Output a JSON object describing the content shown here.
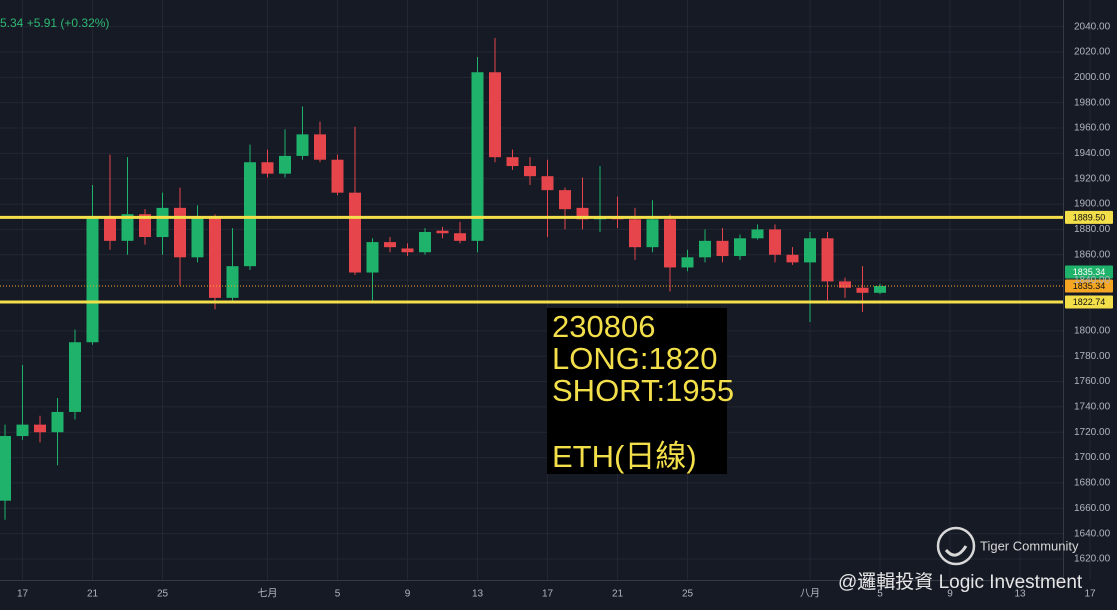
{
  "chart_data": {
    "type": "candlestick",
    "header": "5.34 +5.91 (+0.32%)",
    "categories": [
      null,
      "17",
      null,
      null,
      null,
      "21",
      null,
      null,
      null,
      "25",
      null,
      null,
      null,
      null,
      null,
      "七月",
      null,
      null,
      null,
      "5",
      null,
      null,
      null,
      "9",
      null,
      null,
      null,
      "13",
      null,
      null,
      null,
      "17",
      null,
      null,
      null,
      "21",
      null,
      null,
      null,
      "25",
      null,
      null,
      null,
      null,
      null,
      null,
      "八月",
      null,
      null,
      null,
      "5",
      null,
      null,
      null,
      "9",
      null,
      null,
      null,
      "13",
      null,
      null,
      null,
      "17"
    ],
    "open": [
      1666,
      1717,
      1726,
      1720,
      1736,
      1791,
      1890,
      1871,
      1892,
      1874,
      1897,
      1858,
      1889,
      1826,
      1851,
      1933,
      1924,
      1938,
      1955,
      1935,
      1909,
      1846,
      1870,
      1865,
      1862,
      1879,
      1877,
      1871,
      2004,
      1937,
      1930,
      1922,
      1911,
      1897,
      1888,
      1890,
      1888,
      1866,
      1888,
      1850,
      1858,
      1871,
      1859,
      1873,
      1880,
      1860,
      1854,
      1873,
      1839,
      1834,
      1830,
      null,
      null,
      null,
      null,
      null,
      null,
      null,
      null,
      null,
      null,
      null,
      null
    ],
    "high": [
      1726,
      1773,
      1733,
      1747,
      1801,
      1915,
      1939,
      1937,
      1896,
      1909,
      1913,
      1899,
      1892,
      1881,
      1947,
      1943,
      1959,
      1977,
      1965,
      1939,
      1961,
      1873,
      1874,
      1869,
      1881,
      1882,
      1886,
      2016,
      2031,
      1943,
      1937,
      1935,
      1913,
      1921,
      1930,
      1906,
      1897,
      1903,
      1892,
      1864,
      1880,
      1881,
      1876,
      1884,
      1884,
      1866,
      1878,
      1878,
      1842,
      1851,
      1837,
      null,
      null,
      null,
      null,
      null,
      null,
      null,
      null,
      null,
      null,
      null,
      null
    ],
    "low": [
      1651,
      1714,
      1712,
      1694,
      1730,
      1789,
      1864,
      1860,
      1868,
      1860,
      1836,
      1854,
      1817,
      1824,
      1848,
      1921,
      1921,
      1935,
      1933,
      1907,
      1844,
      1824,
      1862,
      1859,
      1860,
      1873,
      1869,
      1862,
      1933,
      1927,
      1915,
      1874,
      1880,
      1880,
      1878,
      1881,
      1856,
      1862,
      1831,
      1847,
      1854,
      1854,
      1856,
      1872,
      1854,
      1852,
      1807,
      1824,
      1826,
      1815,
      1829,
      null,
      null,
      null,
      null,
      null,
      null,
      null,
      null,
      null,
      null,
      null,
      null
    ],
    "close": [
      1717,
      1726,
      1720,
      1736,
      1791,
      1890,
      1871,
      1892,
      1874,
      1897,
      1858,
      1889,
      1826,
      1851,
      1933,
      1924,
      1938,
      1955,
      1935,
      1909,
      1846,
      1870,
      1866,
      1862,
      1878,
      1877,
      1871,
      2004,
      1937,
      1930,
      1922,
      1911,
      1896,
      1888,
      1890,
      1888,
      1866,
      1888,
      1850,
      1858,
      1871,
      1859,
      1873,
      1880,
      1860,
      1854,
      1873,
      1839,
      1834,
      1830,
      1835.34,
      null,
      null,
      null,
      null,
      null,
      null,
      null,
      null,
      null,
      null,
      null,
      null
    ],
    "up_color": "#1fb26a",
    "down_color": "#e6454b",
    "ylim": [
      1605,
      2061
    ],
    "yticks": [
      {
        "value": 2040,
        "label": "2040.00"
      },
      {
        "value": 2020,
        "label": "2020.00"
      },
      {
        "value": 2000,
        "label": "2000.00"
      },
      {
        "value": 1980,
        "label": "1980.00"
      },
      {
        "value": 1960,
        "label": "1960.00"
      },
      {
        "value": 1940,
        "label": "1940.00"
      },
      {
        "value": 1920,
        "label": "1920.00"
      },
      {
        "value": 1900,
        "label": "1900.00"
      },
      {
        "value": 1880,
        "label": "1880.00"
      },
      {
        "value": 1860,
        "label": "1860.00"
      },
      {
        "value": 1840,
        "label": "1840.00"
      },
      {
        "value": 1800,
        "label": "1800.00"
      },
      {
        "value": 1780,
        "label": "1780.00"
      },
      {
        "value": 1760,
        "label": "1760.00"
      },
      {
        "value": 1740,
        "label": "1740.00"
      },
      {
        "value": 1720,
        "label": "1720.00"
      },
      {
        "value": 1700,
        "label": "1700.00"
      },
      {
        "value": 1680,
        "label": "1680.00"
      },
      {
        "value": 1660,
        "label": "1660.00"
      },
      {
        "value": 1640,
        "label": "1640.00"
      },
      {
        "value": 1620,
        "label": "1620.00"
      }
    ],
    "grid": true,
    "price_labels": [
      {
        "value": 1889.5,
        "label": "1889.50",
        "color": "#f3df4a",
        "text_color": "#111111",
        "line": "solid"
      },
      {
        "value": 1835.34,
        "label": "1835.34",
        "color": "#f5a623",
        "text_color": "#111111",
        "line": "dotted"
      },
      {
        "value": 1835.34,
        "label": "1835.34",
        "color": "#1fb26a",
        "text_color": "#ffffff",
        "line": "none"
      },
      {
        "value": 1822.74,
        "label": "1822.74",
        "color": "#f3df4a",
        "text_color": "#111111",
        "line": "solid"
      }
    ],
    "annotation": [
      "230806",
      "LONG:1820",
      "SHORT:1955",
      "ETH(日線)"
    ],
    "watermark": [
      "Tiger Community",
      "@邏輯投資 Logic Investment"
    ]
  }
}
